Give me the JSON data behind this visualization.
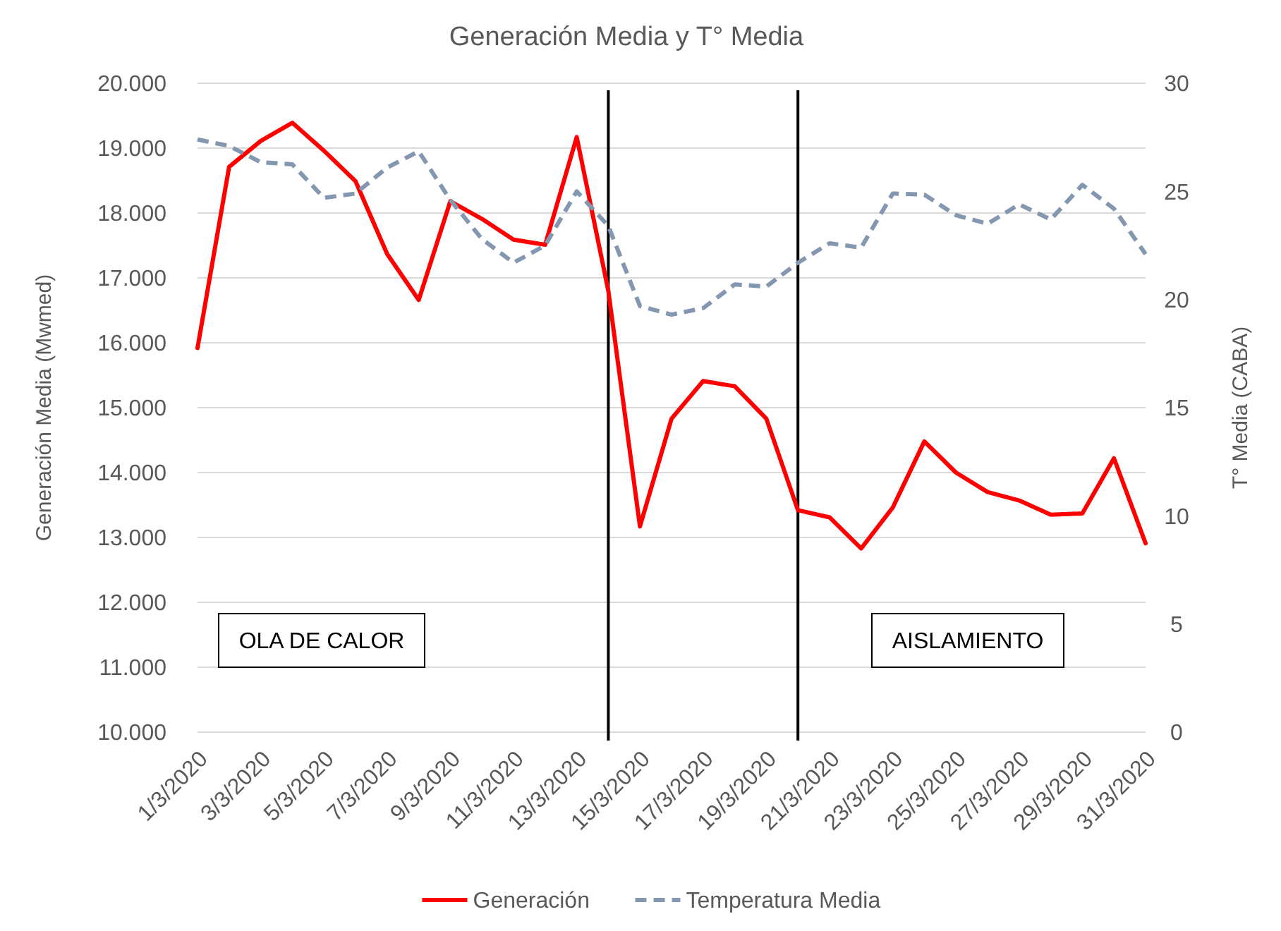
{
  "chart_data": {
    "type": "line",
    "title": "Generación Media y T° Media",
    "xlabel": null,
    "ylabel": "Generación Media (Mwmed)",
    "y2label": "T° Media (CABA)",
    "x": [
      "2020-03-01",
      "2020-03-02",
      "2020-03-03",
      "2020-03-04",
      "2020-03-05",
      "2020-03-06",
      "2020-03-07",
      "2020-03-08",
      "2020-03-09",
      "2020-03-10",
      "2020-03-11",
      "2020-03-12",
      "2020-03-13",
      "2020-03-14",
      "2020-03-15",
      "2020-03-16",
      "2020-03-17",
      "2020-03-18",
      "2020-03-19",
      "2020-03-20",
      "2020-03-21",
      "2020-03-22",
      "2020-03-23",
      "2020-03-24",
      "2020-03-25",
      "2020-03-26",
      "2020-03-27",
      "2020-03-28",
      "2020-03-29",
      "2020-03-30",
      "2020-03-31"
    ],
    "series": [
      {
        "name": "Generación",
        "color": "#ff0000",
        "line_style": "solid",
        "values": [
          15920,
          18710,
          19110,
          19390,
          18960,
          18490,
          17370,
          16660,
          18180,
          17910,
          17590,
          17510,
          19170,
          16800,
          13170,
          14830,
          15410,
          15330,
          14830,
          13420,
          13310,
          12830,
          13460,
          14480,
          14000,
          13700,
          13570,
          13350,
          13370,
          14220,
          12910
        ]
      },
      {
        "name": "Temperatura Media",
        "color": "#8497b0",
        "line_style": "dashed",
        "axis": "y2",
        "values": [
          27.4,
          27.1,
          26.35,
          26.25,
          24.7,
          24.9,
          26.1,
          26.85,
          24.6,
          22.8,
          21.7,
          22.5,
          25.0,
          23.4,
          19.7,
          19.3,
          19.6,
          20.7,
          20.6,
          21.7,
          22.6,
          22.4,
          24.9,
          24.85,
          23.9,
          23.5,
          24.4,
          23.7,
          25.3,
          24.2,
          22.1
        ]
      }
    ],
    "xlim": [
      "2020-03-01",
      "2020-03-31"
    ],
    "xticks": [
      {
        "value": "2020-03-01",
        "label": "1/3/2020"
      },
      {
        "value": "2020-03-03",
        "label": "3/3/2020"
      },
      {
        "value": "2020-03-05",
        "label": "5/3/2020"
      },
      {
        "value": "2020-03-07",
        "label": "7/3/2020"
      },
      {
        "value": "2020-03-09",
        "label": "9/3/2020"
      },
      {
        "value": "2020-03-11",
        "label": "11/3/2020"
      },
      {
        "value": "2020-03-13",
        "label": "13/3/2020"
      },
      {
        "value": "2020-03-15",
        "label": "15/3/2020"
      },
      {
        "value": "2020-03-17",
        "label": "17/3/2020"
      },
      {
        "value": "2020-03-19",
        "label": "19/3/2020"
      },
      {
        "value": "2020-03-21",
        "label": "21/3/2020"
      },
      {
        "value": "2020-03-23",
        "label": "23/3/2020"
      },
      {
        "value": "2020-03-25",
        "label": "25/3/2020"
      },
      {
        "value": "2020-03-27",
        "label": "27/3/2020"
      },
      {
        "value": "2020-03-29",
        "label": "29/3/2020"
      },
      {
        "value": "2020-03-31",
        "label": "31/3/2020"
      }
    ],
    "ylim": [
      10000,
      20000
    ],
    "yticks": [
      {
        "value": 10000,
        "label": "10.000"
      },
      {
        "value": 11000,
        "label": "11.000"
      },
      {
        "value": 12000,
        "label": "12.000"
      },
      {
        "value": 13000,
        "label": "13.000"
      },
      {
        "value": 14000,
        "label": "14.000"
      },
      {
        "value": 15000,
        "label": "15.000"
      },
      {
        "value": 16000,
        "label": "16.000"
      },
      {
        "value": 17000,
        "label": "17.000"
      },
      {
        "value": 18000,
        "label": "18.000"
      },
      {
        "value": 19000,
        "label": "19.000"
      },
      {
        "value": 20000,
        "label": "20.000"
      }
    ],
    "y2lim": [
      0,
      30
    ],
    "y2ticks": [
      0,
      5,
      10,
      15,
      20,
      25,
      30
    ],
    "ref_lines": [
      {
        "axis": "x",
        "value": "2020-03-14",
        "color": "#000000"
      },
      {
        "axis": "x",
        "value": "2020-03-20",
        "color": "#000000"
      }
    ],
    "annotations": [
      "OLA DE CALOR",
      "AISLAMIENTO"
    ],
    "grid": "y",
    "legend": "bottom",
    "marker": "none"
  }
}
